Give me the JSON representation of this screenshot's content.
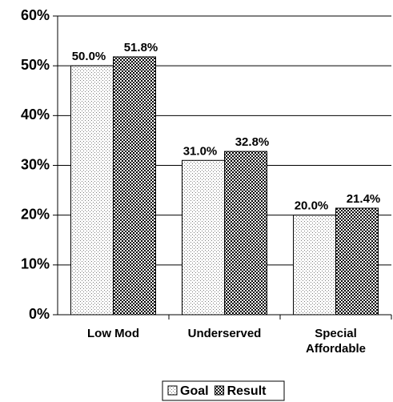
{
  "chart_data": {
    "type": "bar",
    "categories": [
      "Low Mod",
      "Underserved",
      "Special Affordable"
    ],
    "series": [
      {
        "name": "Goal",
        "color": "#7a7a7a",
        "values": [
          50.0,
          31.0,
          20.0
        ],
        "value_labels": [
          "50.0%",
          "31.0%",
          "20.0%"
        ]
      },
      {
        "name": "Result",
        "color": "#000000",
        "values": [
          51.8,
          32.8,
          21.4
        ],
        "value_labels": [
          "51.8%",
          "32.8%",
          "21.4%"
        ]
      }
    ],
    "ylim": [
      0,
      60
    ],
    "yticks": [
      {
        "value": 0,
        "label": "0%"
      },
      {
        "value": 10,
        "label": "10%"
      },
      {
        "value": 20,
        "label": "20%"
      },
      {
        "value": 30,
        "label": "30%"
      },
      {
        "value": 40,
        "label": "40%"
      },
      {
        "value": 50,
        "label": "50%"
      },
      {
        "value": 60,
        "label": "60%"
      }
    ],
    "grid": true,
    "legend": "bottom"
  }
}
